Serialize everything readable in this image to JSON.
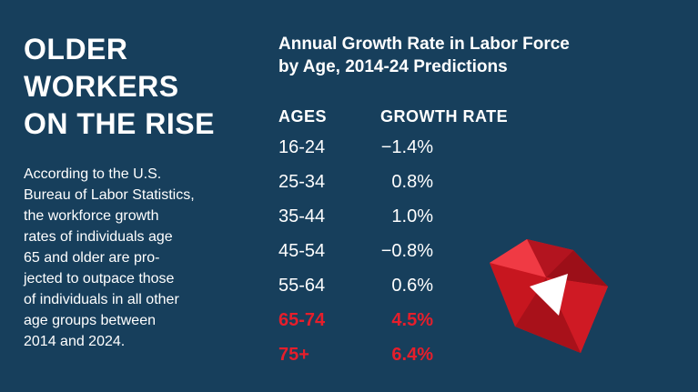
{
  "headline": [
    "OLDER",
    "WORKERS",
    "ON THE RISE"
  ],
  "body_lines": [
    "According to the U.S.",
    "Bureau of Labor Statistics,",
    "the workforce growth",
    "rates of individuals age",
    "65 and older are pro-",
    "jected to outpace those",
    "of individuals in all other",
    "age groups between",
    "2014 and 2024."
  ],
  "chart_data": {
    "type": "table",
    "title_lines": [
      "Annual Growth Rate in Labor Force",
      "by Age, 2014-24 Predictions"
    ],
    "columns": [
      "AGES",
      "GROWTH RATE"
    ],
    "rows": [
      {
        "age": "16-24",
        "rate": "−1.4%",
        "value": -1.4,
        "highlight": false
      },
      {
        "age": "25-34",
        "rate": "0.8%",
        "value": 0.8,
        "highlight": false
      },
      {
        "age": "35-44",
        "rate": "1.0%",
        "value": 1.0,
        "highlight": false
      },
      {
        "age": "45-54",
        "rate": "−0.8%",
        "value": -0.8,
        "highlight": false
      },
      {
        "age": "55-64",
        "rate": "0.6%",
        "value": 0.6,
        "highlight": false
      },
      {
        "age": "65-74",
        "rate": "4.5%",
        "value": 4.5,
        "highlight": true
      },
      {
        "age": "75+",
        "rate": "6.4%",
        "value": 6.4,
        "highlight": true
      }
    ],
    "highlight_color": "#e61e2b"
  },
  "colors": {
    "background": "#173f5c",
    "text": "#ffffff",
    "accent": "#e61e2b"
  },
  "decoration": {
    "icon": "ruby-gem-icon"
  }
}
